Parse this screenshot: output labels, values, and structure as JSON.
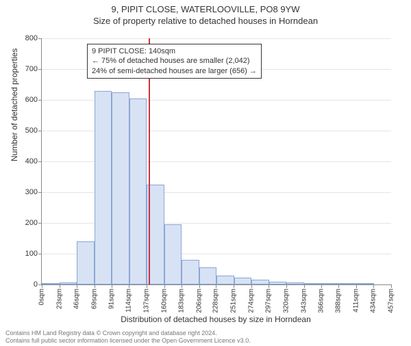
{
  "title_main": "9, PIPIT CLOSE, WATERLOOVILLE, PO8 9YW",
  "title_sub": "Size of property relative to detached houses in Horndean",
  "chart": {
    "type": "histogram",
    "ylabel": "Number of detached properties",
    "xlabel": "Distribution of detached houses by size in Horndean",
    "ylim": [
      0,
      800
    ],
    "ytick_step": 100,
    "background_color": "#ffffff",
    "grid_color": "#e5e5e5",
    "bar_fill": "#d7e2f4",
    "bar_border": "#8aa6d6",
    "marker_color": "#cc3340",
    "marker_x_value": 140,
    "x_bin_width": 23,
    "x_ticks": [
      0,
      23,
      46,
      69,
      91,
      114,
      137,
      160,
      183,
      206,
      228,
      251,
      274,
      297,
      320,
      343,
      366,
      388,
      411,
      434,
      457
    ],
    "x_tick_suffix": "sqm",
    "values": [
      4,
      6,
      140,
      630,
      625,
      605,
      325,
      195,
      80,
      55,
      30,
      22,
      15,
      10,
      6,
      3,
      2,
      1,
      1,
      0
    ],
    "annotation": {
      "line1": "9 PIPIT CLOSE: 140sqm",
      "line2": "← 75% of detached houses are smaller (2,042)",
      "line3": "24% of semi-detached houses are larger (656) →"
    }
  },
  "footer_line1": "Contains HM Land Registry data © Crown copyright and database right 2024.",
  "footer_line2": "Contains full public sector information licensed under the Open Government Licence v3.0.",
  "fontsize_title": 13,
  "fontsize_axis_label": 12,
  "fontsize_tick": 11
}
